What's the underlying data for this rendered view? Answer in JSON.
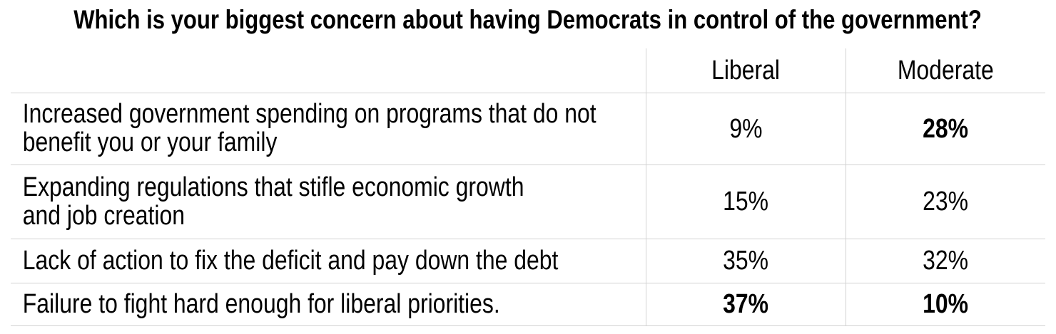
{
  "title": "Which is your biggest concern about having Democrats in control of the government?",
  "table": {
    "columns": [
      "Liberal",
      "Moderate"
    ],
    "rows": [
      {
        "label_lines": [
          "Increased government spending on programs that do not",
          "benefit you or your family"
        ],
        "liberal": {
          "text": "9%",
          "bold": false
        },
        "moderate": {
          "text": "28%",
          "bold": true
        }
      },
      {
        "label_lines": [
          "Expanding regulations that stifle economic growth",
          "and job creation"
        ],
        "liberal": {
          "text": "15%",
          "bold": false
        },
        "moderate": {
          "text": "23%",
          "bold": false
        }
      },
      {
        "label_lines": [
          "Lack of action to fix the deficit and pay down the debt"
        ],
        "liberal": {
          "text": "35%",
          "bold": false
        },
        "moderate": {
          "text": "32%",
          "bold": false
        }
      },
      {
        "label_lines": [
          "Failure to fight hard enough for liberal priorities."
        ],
        "liberal": {
          "text": "37%",
          "bold": true
        },
        "moderate": {
          "text": "10%",
          "bold": true
        }
      }
    ]
  },
  "colors": {
    "background": "#ffffff",
    "text": "#000000",
    "grid_line": "#d2d2d2"
  },
  "chart_data": {
    "type": "table",
    "title": "Which is your biggest concern about having Democrats in control of the government?",
    "categories": [
      "Increased government spending on programs that do not benefit you or your family",
      "Expanding regulations that stifle economic growth and job creation",
      "Lack of action to fix the deficit and pay down the debt",
      "Failure to fight hard enough for liberal priorities."
    ],
    "series": [
      {
        "name": "Liberal",
        "values": [
          9,
          15,
          35,
          37
        ]
      },
      {
        "name": "Moderate",
        "values": [
          28,
          23,
          32,
          10
        ]
      }
    ],
    "unit": "%",
    "emphasized_cells": [
      {
        "row": 0,
        "column": "Moderate"
      },
      {
        "row": 3,
        "column": "Liberal"
      },
      {
        "row": 3,
        "column": "Moderate"
      }
    ]
  }
}
